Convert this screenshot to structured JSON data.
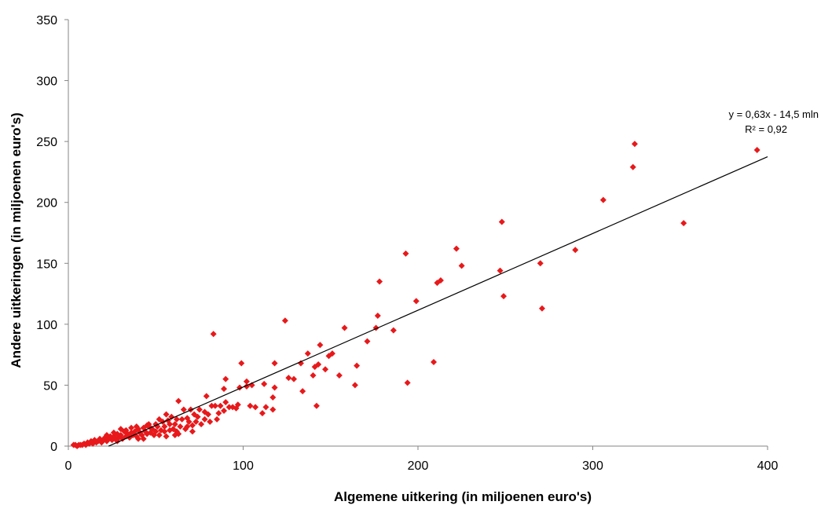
{
  "chart_data": {
    "type": "scatter",
    "title": "",
    "xlabel": "Algemene uitkering (in miljoenen euro's)",
    "ylabel": "Andere uitkeringen (in miljoenen euro's)",
    "xlim": [
      0,
      400
    ],
    "ylim": [
      0,
      350
    ],
    "xticks": [
      0,
      100,
      200,
      300,
      400
    ],
    "yticks": [
      0,
      50,
      100,
      150,
      200,
      250,
      300,
      350
    ],
    "grid": false,
    "legend": "none",
    "marker_color": "#e8191b",
    "marker": "diamond",
    "trendline": {
      "type": "linear",
      "slope": 0.63,
      "intercept": -14.5,
      "x_range": [
        23,
        400
      ],
      "equation_label": "y = 0,63x - 14,5 mln",
      "r2_label": "R² = 0,92",
      "color": "#000000"
    },
    "points": [
      [
        394,
        243
      ],
      [
        324,
        248
      ],
      [
        323,
        229
      ],
      [
        352,
        183
      ],
      [
        306,
        202
      ],
      [
        290,
        161
      ],
      [
        271,
        113
      ],
      [
        270,
        150
      ],
      [
        248,
        184
      ],
      [
        247,
        144
      ],
      [
        249,
        123
      ],
      [
        222,
        162
      ],
      [
        225,
        148
      ],
      [
        213,
        136
      ],
      [
        211,
        134
      ],
      [
        199,
        119
      ],
      [
        193,
        158
      ],
      [
        194,
        52
      ],
      [
        209,
        69
      ],
      [
        186,
        95
      ],
      [
        178,
        135
      ],
      [
        177,
        107
      ],
      [
        176,
        97
      ],
      [
        171,
        86
      ],
      [
        165,
        66
      ],
      [
        164,
        50
      ],
      [
        158,
        97
      ],
      [
        155,
        58
      ],
      [
        151,
        76
      ],
      [
        149,
        74
      ],
      [
        147,
        63
      ],
      [
        144,
        83
      ],
      [
        143,
        67
      ],
      [
        141,
        65
      ],
      [
        142,
        33
      ],
      [
        140,
        58
      ],
      [
        137,
        76
      ],
      [
        134,
        45
      ],
      [
        133,
        68
      ],
      [
        129,
        55
      ],
      [
        126,
        56
      ],
      [
        124,
        103
      ],
      [
        118,
        68
      ],
      [
        118,
        48
      ],
      [
        117,
        40
      ],
      [
        117,
        30
      ],
      [
        112,
        51
      ],
      [
        111,
        27
      ],
      [
        113,
        32
      ],
      [
        107,
        32
      ],
      [
        105,
        50
      ],
      [
        104,
        33
      ],
      [
        102,
        53
      ],
      [
        102,
        49
      ],
      [
        99,
        68
      ],
      [
        98,
        48
      ],
      [
        97,
        34
      ],
      [
        96,
        31
      ],
      [
        94,
        32
      ],
      [
        92,
        32
      ],
      [
        90,
        55
      ],
      [
        89,
        47
      ],
      [
        90,
        36
      ],
      [
        89,
        29
      ],
      [
        87,
        33
      ],
      [
        86,
        27
      ],
      [
        84,
        33
      ],
      [
        83,
        92
      ],
      [
        82,
        33
      ],
      [
        79,
        41
      ],
      [
        80,
        26
      ],
      [
        78,
        28
      ],
      [
        78,
        22
      ],
      [
        75,
        30
      ],
      [
        74,
        24
      ],
      [
        73,
        20
      ],
      [
        72,
        26
      ],
      [
        71,
        17
      ],
      [
        70,
        30
      ],
      [
        69,
        20
      ],
      [
        68,
        23
      ],
      [
        67,
        14
      ],
      [
        66,
        30
      ],
      [
        65,
        22
      ],
      [
        64,
        16
      ],
      [
        63,
        37
      ],
      [
        62,
        22
      ],
      [
        62,
        12
      ],
      [
        61,
        18
      ],
      [
        60,
        14
      ],
      [
        59,
        24
      ],
      [
        58,
        18
      ],
      [
        57,
        21
      ],
      [
        56,
        26
      ],
      [
        55,
        16
      ],
      [
        55,
        12
      ],
      [
        54,
        20
      ],
      [
        53,
        13
      ],
      [
        52,
        22
      ],
      [
        51,
        16
      ],
      [
        50,
        12
      ],
      [
        50,
        18
      ],
      [
        49,
        9
      ],
      [
        48,
        14
      ],
      [
        47,
        15
      ],
      [
        46,
        18
      ],
      [
        45,
        10
      ],
      [
        44,
        12
      ],
      [
        43,
        15
      ],
      [
        42,
        9
      ],
      [
        41,
        11
      ],
      [
        40,
        14
      ],
      [
        39,
        8
      ],
      [
        38,
        12
      ],
      [
        37,
        9
      ],
      [
        36,
        11
      ],
      [
        35,
        7
      ],
      [
        34,
        10
      ],
      [
        33,
        8
      ],
      [
        32,
        12
      ],
      [
        31,
        6
      ],
      [
        30,
        9
      ],
      [
        30,
        14
      ],
      [
        29,
        7
      ],
      [
        28,
        10
      ],
      [
        27,
        6
      ],
      [
        26,
        8
      ],
      [
        25,
        5
      ],
      [
        24,
        8
      ],
      [
        23,
        6
      ],
      [
        22,
        4
      ],
      [
        21,
        7
      ],
      [
        20,
        5
      ],
      [
        19,
        3
      ],
      [
        18,
        6
      ],
      [
        17,
        4
      ],
      [
        16,
        3
      ],
      [
        15,
        5
      ],
      [
        14,
        2
      ],
      [
        13,
        4
      ],
      [
        12,
        2
      ],
      [
        11,
        3
      ],
      [
        10,
        1
      ],
      [
        9,
        2
      ],
      [
        8,
        1
      ],
      [
        7,
        1
      ],
      [
        6,
        1
      ],
      [
        5,
        0
      ],
      [
        4,
        1
      ],
      [
        3,
        1
      ],
      [
        45,
        17
      ],
      [
        52,
        9
      ],
      [
        58,
        13
      ],
      [
        63,
        10
      ],
      [
        68,
        16
      ],
      [
        71,
        12
      ],
      [
        76,
        18
      ],
      [
        81,
        20
      ],
      [
        85,
        22
      ],
      [
        36,
        15
      ],
      [
        40,
        6
      ],
      [
        47,
        11
      ],
      [
        33,
        13
      ],
      [
        28,
        4
      ],
      [
        61,
        9
      ],
      [
        56,
        8
      ],
      [
        43,
        6
      ],
      [
        39,
        16
      ],
      [
        26,
        11
      ],
      [
        22,
        9
      ]
    ]
  }
}
